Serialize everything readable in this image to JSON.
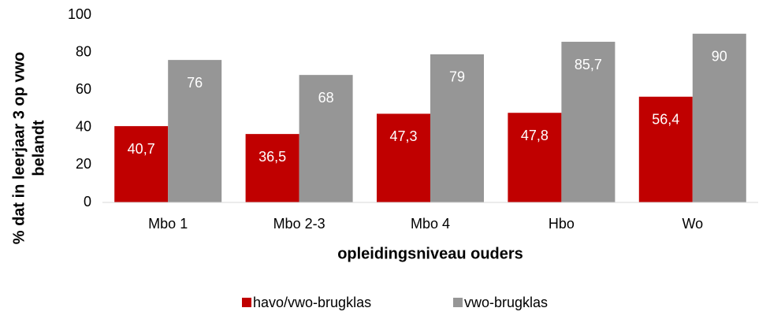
{
  "chart_data": {
    "type": "bar",
    "y_label": [
      "% dat in leerjaar 3 op vwo",
      "belandt"
    ],
    "x_label": "opleidingsniveau ouders",
    "categories": [
      "Mbo 1",
      "Mbo 2-3",
      "Mbo 4",
      "Hbo",
      "Wo"
    ],
    "series": [
      {
        "name": "havo/vwo-brugklas",
        "color": "#c00000",
        "values": [
          40.7,
          36.5,
          47.3,
          47.8,
          56.4
        ],
        "value_labels": [
          "40,7",
          "36,5",
          "47,3",
          "47,8",
          "56,4"
        ]
      },
      {
        "name": "vwo-brugklas",
        "color": "#969696",
        "values": [
          76,
          68,
          79,
          85.7,
          90
        ],
        "value_labels": [
          "76",
          "68",
          "79",
          "85,7",
          "90"
        ]
      }
    ],
    "ylim": [
      0,
      100
    ],
    "yticks": [
      0,
      20,
      40,
      60,
      80,
      100
    ],
    "grid": false,
    "legend": "bottom"
  }
}
